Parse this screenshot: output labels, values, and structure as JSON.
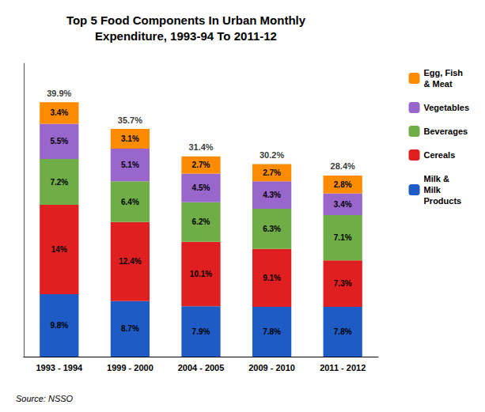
{
  "chart_data": {
    "type": "bar",
    "stacked": true,
    "title": "Top 5 Food Components In Urban Monthly\nExpenditure, 1993-94 To 2011-12",
    "categories": [
      "1993 - 1994",
      "1999 - 2000",
      "2004 - 2005",
      "2009 - 2010",
      "2011 - 2012"
    ],
    "series": [
      {
        "name": "Milk &\nMilk\nProducts",
        "color": "#1F5BC4",
        "values": [
          9.8,
          8.7,
          7.9,
          7.8,
          7.8
        ],
        "value_labels": [
          "9.8%",
          "8.7%",
          "7.9%",
          "7.8%",
          "7.8%"
        ]
      },
      {
        "name": "Cereals",
        "color": "#E02020",
        "values": [
          14.0,
          12.4,
          10.1,
          9.1,
          7.3
        ],
        "value_labels": [
          "14%",
          "12.4%",
          "10.1%",
          "9.1%",
          "7.3%"
        ]
      },
      {
        "name": "Beverages",
        "color": "#70AD47",
        "values": [
          7.2,
          6.4,
          6.2,
          6.3,
          7.1
        ],
        "value_labels": [
          "7.2%",
          "6.4%",
          "6.2%",
          "6.3%",
          "7.1%"
        ]
      },
      {
        "name": "Vegetables",
        "color": "#9966CC",
        "values": [
          5.5,
          5.1,
          4.5,
          4.3,
          3.4
        ],
        "value_labels": [
          "5.5%",
          "5.1%",
          "4.5%",
          "4.3%",
          "3.4%"
        ]
      },
      {
        "name": "Egg, Fish\n& Meat",
        "color": "#FF8C00",
        "values": [
          3.4,
          3.1,
          2.7,
          2.7,
          2.8
        ],
        "value_labels": [
          "3.4%",
          "3.1%",
          "2.7%",
          "2.7%",
          "2.8%"
        ]
      }
    ],
    "totals": [
      39.9,
      35.7,
      31.4,
      30.2,
      28.4
    ],
    "total_labels": [
      "39.9%",
      "35.7%",
      "31.4%",
      "30.2%",
      "28.4%"
    ],
    "annotations": [
      "Source: NSSO"
    ],
    "data_labels": true,
    "ylim": [
      0,
      46
    ],
    "tick_labels": "x",
    "grid": false,
    "legend": "right"
  }
}
